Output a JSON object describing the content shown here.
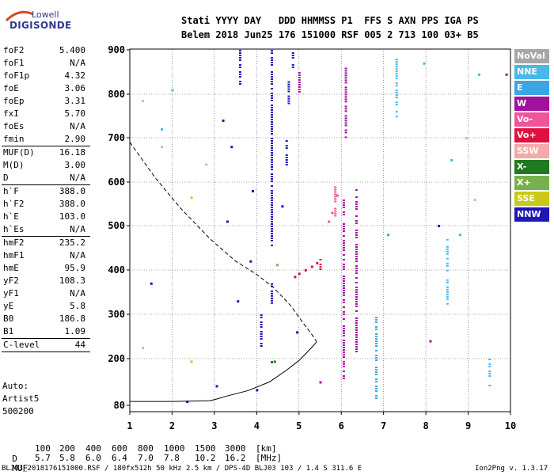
{
  "logo": {
    "line1": "Lowell",
    "line2": "DIGISONDE"
  },
  "header": {
    "line1": "Stati YYYY DAY   DDD HHMMSS P1  FFS S AXN PPS IGA PS",
    "line2": "Belem 2018 Jun25 176 151000 RSF 005 2 713 100 03+ B5"
  },
  "params": {
    "group1": [
      {
        "name": "foF2",
        "value": "5.400"
      },
      {
        "name": "foF1",
        "value": "N/A"
      },
      {
        "name": "foF1p",
        "value": "4.32"
      },
      {
        "name": "foE",
        "value": "3.06"
      },
      {
        "name": "foEp",
        "value": "3.31"
      },
      {
        "name": "fxI",
        "value": "5.70"
      },
      {
        "name": "foEs",
        "value": "N/A"
      },
      {
        "name": "fmin",
        "value": "2.90"
      }
    ],
    "group2": [
      {
        "name": "MUF(D)",
        "value": "16.18"
      },
      {
        "name": "M(D)",
        "value": "3.00"
      },
      {
        "name": "D",
        "value": "N/A"
      }
    ],
    "group3": [
      {
        "name": "h`F",
        "value": "388.0"
      },
      {
        "name": "h`F2",
        "value": "388.0"
      },
      {
        "name": "h`E",
        "value": "103.0"
      },
      {
        "name": "h`Es",
        "value": "N/A"
      }
    ],
    "group4": [
      {
        "name": "hmF2",
        "value": "235.2"
      },
      {
        "name": "hmF1",
        "value": "N/A"
      },
      {
        "name": "hmE",
        "value": "95.9"
      },
      {
        "name": "yF2",
        "value": "108.3"
      },
      {
        "name": "yF1",
        "value": "N/A"
      },
      {
        "name": "yE",
        "value": "5.8"
      },
      {
        "name": "B0",
        "value": "186.8"
      },
      {
        "name": "B1",
        "value": "1.09"
      }
    ],
    "clevel": {
      "name": "C-level",
      "value": "44"
    }
  },
  "side": {
    "auto_label": "Auto:",
    "artist": "Artist5",
    "version": "500200"
  },
  "legend": [
    {
      "label": "NoVal",
      "color": "#a6a6a6"
    },
    {
      "label": "NNE",
      "color": "#47b8ea"
    },
    {
      "label": "E",
      "color": "#3aa6e3"
    },
    {
      "label": "W",
      "color": "#a30f9e"
    },
    {
      "label": "Vo-",
      "color": "#f0549a"
    },
    {
      "label": "Vo+",
      "color": "#e0103f"
    },
    {
      "label": "SSW",
      "color": "#f4aaa8"
    },
    {
      "label": "X-",
      "color": "#1f7a1f"
    },
    {
      "label": "X+",
      "color": "#77b04d"
    },
    {
      "label": "SSE",
      "color": "#c9c918"
    },
    {
      "label": "NNW",
      "color": "#1f16b8"
    }
  ],
  "bottom": {
    "d_label": "D",
    "d_values": [
      "100",
      "200",
      "400",
      "600",
      "800",
      "1000",
      "1500",
      "3000",
      "[km]"
    ],
    "muf_label": "MUF",
    "muf_values": [
      "5.7",
      "5.8",
      "6.0",
      "6.4",
      "7.0",
      "7.8",
      "10.2",
      "16.2",
      "[MHz]"
    ]
  },
  "footer": {
    "left": "BLJ03_2018176151000.RSF / 180fx512h 50 kHz 2.5 km / DPS-4D BLJ03 103 / 1.4 S 311.6 E",
    "right": "Ion2Png v. 1.3.17"
  },
  "chart_data": {
    "type": "scatter",
    "xlim": [
      1,
      10
    ],
    "ylim": [
      80,
      900
    ],
    "x_ticks": [
      "1",
      "2",
      "3",
      "4",
      "5",
      "6",
      "7",
      "8",
      "9",
      "10"
    ],
    "y_ticks": [
      "80",
      "200",
      "300",
      "400",
      "500",
      "600",
      "700",
      "800",
      "900"
    ],
    "y_tick_values": [
      80,
      200,
      300,
      400,
      500,
      600,
      700,
      800,
      900
    ],
    "grid": true,
    "legend_placement": "right",
    "profile_dashed": [
      [
        1.0,
        690
      ],
      [
        1.6,
        610
      ],
      [
        2.2,
        540
      ],
      [
        2.9,
        470
      ],
      [
        3.5,
        420
      ],
      [
        4.0,
        390
      ],
      [
        4.4,
        360
      ],
      [
        4.8,
        320
      ],
      [
        5.1,
        280
      ],
      [
        5.3,
        255
      ],
      [
        5.42,
        238
      ]
    ],
    "profile_solid": [
      [
        1.0,
        90
      ],
      [
        2.0,
        90
      ],
      [
        2.9,
        92
      ],
      [
        3.05,
        96
      ],
      [
        3.3,
        104
      ],
      [
        3.8,
        118
      ],
      [
        4.3,
        140
      ],
      [
        4.7,
        170
      ],
      [
        5.0,
        195
      ],
      [
        5.3,
        225
      ],
      [
        5.42,
        238
      ]
    ],
    "echoes": [
      {
        "color": "#1f16b8",
        "x": 4.35,
        "y0": 450,
        "y1": 900
      },
      {
        "color": "#1f16b8",
        "x": 4.35,
        "y0": 320,
        "y1": 370
      },
      {
        "color": "#1f16b8",
        "x": 4.1,
        "y0": 215,
        "y1": 300
      },
      {
        "color": "#1f16b8",
        "x": 3.6,
        "y0": 820,
        "y1": 900
      },
      {
        "color": "#1f16b8",
        "x": 4.7,
        "y0": 640,
        "y1": 700
      },
      {
        "color": "#1f16b8",
        "x": 4.75,
        "y0": 780,
        "y1": 840
      },
      {
        "color": "#1f16b8",
        "x": 4.85,
        "y0": 860,
        "y1": 900
      },
      {
        "color": "#a30f9e",
        "x": 6.05,
        "y0": 140,
        "y1": 560
      },
      {
        "color": "#a30f9e",
        "x": 6.35,
        "y0": 210,
        "y1": 600
      },
      {
        "color": "#a30f9e",
        "x": 6.1,
        "y0": 700,
        "y1": 860
      },
      {
        "color": "#a30f9e",
        "x": 5.0,
        "y0": 800,
        "y1": 850
      },
      {
        "color": "#3aa6e3",
        "x": 6.82,
        "y0": 95,
        "y1": 300
      },
      {
        "color": "#47b8ea",
        "x": 7.3,
        "y0": 750,
        "y1": 880
      },
      {
        "color": "#47b8ea",
        "x": 8.5,
        "y0": 320,
        "y1": 470
      },
      {
        "color": "#47b8ea",
        "x": 9.5,
        "y0": 130,
        "y1": 200
      },
      {
        "color": "#e0103f",
        "x": 5.5,
        "y0": 400,
        "y1": 425
      },
      {
        "color": "#f0549a",
        "x": 5.85,
        "y0": 520,
        "y1": 590
      }
    ],
    "points": [
      {
        "color": "#e0103f",
        "x": 5.0,
        "y": 392
      },
      {
        "color": "#e0103f",
        "x": 5.15,
        "y": 400
      },
      {
        "color": "#e0103f",
        "x": 5.3,
        "y": 408
      },
      {
        "color": "#e0103f",
        "x": 5.42,
        "y": 416
      },
      {
        "color": "#f0549a",
        "x": 5.7,
        "y": 510
      },
      {
        "color": "#f0549a",
        "x": 5.78,
        "y": 530
      },
      {
        "color": "#f0549a",
        "x": 5.9,
        "y": 570
      },
      {
        "color": "#1f7a1f",
        "x": 4.35,
        "y": 192
      },
      {
        "color": "#1f7a1f",
        "x": 4.42,
        "y": 193
      },
      {
        "color": "#77b04d",
        "x": 4.48,
        "y": 412
      },
      {
        "color": "#f4aaa8",
        "x": 1.3,
        "y": 785
      },
      {
        "color": "#f4aaa8",
        "x": 1.3,
        "y": 225
      },
      {
        "color": "#f4aaa8",
        "x": 1.75,
        "y": 680
      },
      {
        "color": "#f4aaa8",
        "x": 2.8,
        "y": 640
      },
      {
        "color": "#f4aaa8",
        "x": 8.95,
        "y": 700
      },
      {
        "color": "#f4aaa8",
        "x": 9.15,
        "y": 560
      },
      {
        "color": "#c9c918",
        "x": 2.45,
        "y": 565
      },
      {
        "color": "#c9c918",
        "x": 2.45,
        "y": 193
      },
      {
        "color": "#47b8ea",
        "x": 2.0,
        "y": 810
      },
      {
        "color": "#47b8ea",
        "x": 1.75,
        "y": 720
      },
      {
        "color": "#47b8ea",
        "x": 7.95,
        "y": 870
      },
      {
        "color": "#47b8ea",
        "x": 9.25,
        "y": 845
      },
      {
        "color": "#47b8ea",
        "x": 8.6,
        "y": 650
      },
      {
        "color": "#47b8ea",
        "x": 8.8,
        "y": 480
      },
      {
        "color": "#3aa6e3",
        "x": 7.1,
        "y": 480
      },
      {
        "color": "#1f16b8",
        "x": 3.2,
        "y": 740
      },
      {
        "color": "#1f16b8",
        "x": 3.4,
        "y": 680
      },
      {
        "color": "#1f16b8",
        "x": 3.3,
        "y": 510
      },
      {
        "color": "#1f16b8",
        "x": 3.05,
        "y": 130
      },
      {
        "color": "#1f16b8",
        "x": 2.35,
        "y": 90
      },
      {
        "color": "#1f16b8",
        "x": 3.9,
        "y": 580
      },
      {
        "color": "#1f16b8",
        "x": 4.6,
        "y": 545
      },
      {
        "color": "#1f16b8",
        "x": 3.85,
        "y": 420
      },
      {
        "color": "#1f16b8",
        "x": 3.55,
        "y": 330
      },
      {
        "color": "#1f16b8",
        "x": 4.0,
        "y": 120
      },
      {
        "color": "#1f16b8",
        "x": 4.95,
        "y": 260
      },
      {
        "color": "#1f16b8",
        "x": 8.3,
        "y": 500
      },
      {
        "color": "#1f16b8",
        "x": 1.5,
        "y": 370
      },
      {
        "color": "#a30f9e",
        "x": 4.9,
        "y": 385
      },
      {
        "color": "#a30f9e",
        "x": 5.5,
        "y": 140
      },
      {
        "color": "#a30f9e",
        "x": 9.9,
        "y": 845
      },
      {
        "color": "#a30f9e",
        "x": 8.1,
        "y": 240
      }
    ]
  }
}
